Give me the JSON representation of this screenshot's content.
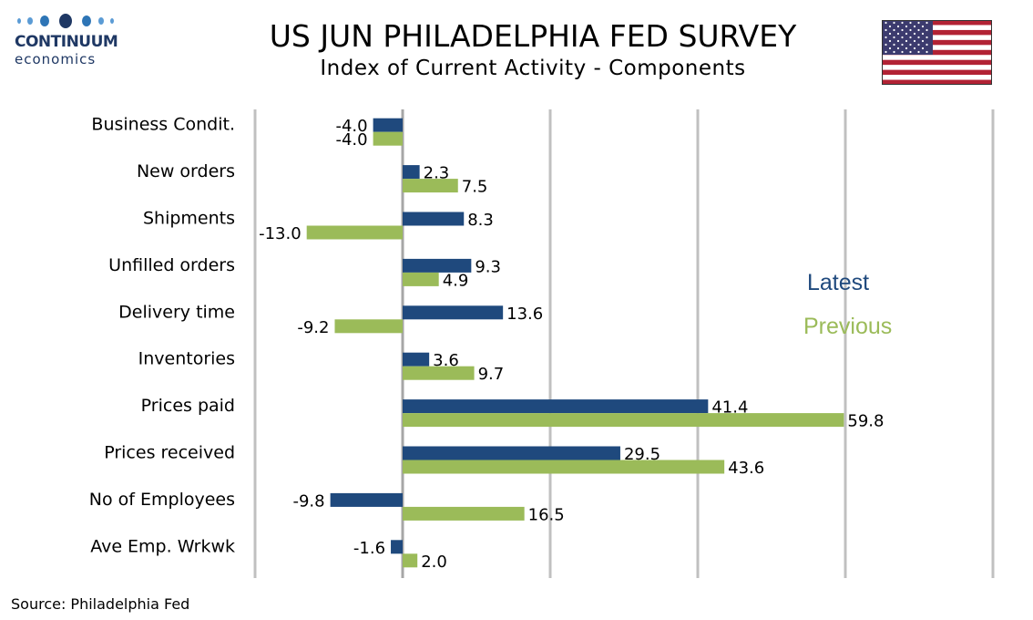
{
  "brand": {
    "name": "CONTINUUM",
    "tagline": "economics"
  },
  "title": "US JUN PHILADELPHIA FED SURVEY",
  "subtitle": "Index of Current Activity - Components",
  "source": "Source: Philadelphia Fed",
  "colors": {
    "latest": "#1f497d",
    "previous": "#9bbb59",
    "grid": "#c0c0c0",
    "flag_red": "#b22234",
    "flag_blue": "#3c3b6e"
  },
  "chart_data": {
    "type": "bar",
    "orientation": "horizontal",
    "categories": [
      "Business Condit.",
      "New orders ",
      "Shipments ",
      "Unfilled orders",
      "Delivery time",
      "Inventories",
      "Prices paid",
      "Prices received",
      "No of Employees",
      "Ave Emp. Wrkwk"
    ],
    "series": [
      {
        "name": "Latest",
        "values": [
          -4.0,
          2.3,
          8.3,
          9.3,
          13.6,
          3.6,
          41.4,
          29.5,
          -9.8,
          -1.6
        ],
        "labels": [
          "-4.0",
          "2.3",
          "8.3",
          "9.3",
          "13.6",
          "3.6",
          "41.4",
          "29.5",
          "-9.8",
          "-1.6"
        ]
      },
      {
        "name": "Previous",
        "values": [
          -4.0,
          7.5,
          -13.0,
          4.9,
          -9.2,
          9.7,
          59.8,
          43.6,
          16.5,
          2.0
        ],
        "labels": [
          "-4.0",
          "7.5",
          "-13.0",
          "4.9",
          "-9.2",
          "9.7",
          "59.8",
          "43.6",
          "16.5",
          "2.0"
        ]
      }
    ],
    "xlim": [
      -20,
      80
    ],
    "grid": true,
    "legend": "right"
  }
}
